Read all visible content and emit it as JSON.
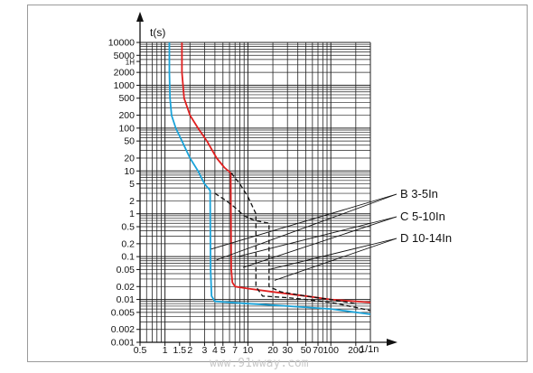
{
  "chart_data": {
    "type": "line",
    "title": "",
    "xlabel": "1/1n",
    "ylabel": "t(s)",
    "x_scale": "log",
    "y_scale": "log",
    "xlim": [
      0.5,
      300
    ],
    "ylim": [
      0.001,
      10000
    ],
    "grid": true,
    "x_ticks": [
      {
        "v": 0.5,
        "label": "0.5"
      },
      {
        "v": 1,
        "label": "1"
      },
      {
        "v": 1.5,
        "label": "1.5"
      },
      {
        "v": 2,
        "label": "2"
      },
      {
        "v": 3,
        "label": "3"
      },
      {
        "v": 4,
        "label": "4"
      },
      {
        "v": 5,
        "label": "5"
      },
      {
        "v": 7,
        "label": "7"
      },
      {
        "v": 10,
        "label": "10"
      },
      {
        "v": 20,
        "label": "20"
      },
      {
        "v": 30,
        "label": "30"
      },
      {
        "v": 50,
        "label": "50"
      },
      {
        "v": 70,
        "label": "70"
      },
      {
        "v": 100,
        "label": "100"
      },
      {
        "v": 200,
        "label": "200"
      }
    ],
    "y_ticks": [
      {
        "v": 10000,
        "label": "10000"
      },
      {
        "v": 5000,
        "label": "5000"
      },
      {
        "v": 3600,
        "label": "1H"
      },
      {
        "v": 2000,
        "label": "2000"
      },
      {
        "v": 1000,
        "label": "1000"
      },
      {
        "v": 500,
        "label": "500"
      },
      {
        "v": 200,
        "label": "200"
      },
      {
        "v": 100,
        "label": "100"
      },
      {
        "v": 50,
        "label": "50"
      },
      {
        "v": 20,
        "label": "20"
      },
      {
        "v": 10,
        "label": "10"
      },
      {
        "v": 5,
        "label": "5"
      },
      {
        "v": 2,
        "label": "2"
      },
      {
        "v": 1,
        "label": "1"
      },
      {
        "v": 0.5,
        "label": "0.5"
      },
      {
        "v": 0.2,
        "label": "0.2"
      },
      {
        "v": 0.1,
        "label": "0.1"
      },
      {
        "v": 0.05,
        "label": "0.05"
      },
      {
        "v": 0.02,
        "label": "0.02"
      },
      {
        "v": 0.01,
        "label": "0.01"
      },
      {
        "v": 0.005,
        "label": "0.005"
      },
      {
        "v": 0.002,
        "label": "0.002"
      },
      {
        "v": 0.001,
        "label": "0.001"
      }
    ],
    "series": [
      {
        "color": "#1aa3d9",
        "style": "solid",
        "points": [
          [
            1.13,
            10000
          ],
          [
            1.13,
            2000
          ],
          [
            1.15,
            500
          ],
          [
            1.2,
            200
          ],
          [
            1.35,
            100
          ],
          [
            1.6,
            50
          ],
          [
            2.0,
            20
          ],
          [
            2.5,
            10
          ],
          [
            3.0,
            5
          ],
          [
            3.5,
            3.5
          ],
          [
            3.55,
            0.05
          ],
          [
            3.65,
            0.012
          ],
          [
            4,
            0.009
          ],
          [
            10,
            0.008
          ],
          [
            30,
            0.007
          ],
          [
            100,
            0.006
          ],
          [
            300,
            0.0045
          ]
        ]
      },
      {
        "color": "#e02020",
        "style": "solid",
        "points": [
          [
            1.6,
            10000
          ],
          [
            1.6,
            2000
          ],
          [
            1.7,
            500
          ],
          [
            2.0,
            200
          ],
          [
            2.5,
            100
          ],
          [
            3.2,
            50
          ],
          [
            4.2,
            20
          ],
          [
            5.2,
            12
          ],
          [
            6.2,
            9
          ],
          [
            6.3,
            0.05
          ],
          [
            6.5,
            0.025
          ],
          [
            7,
            0.02
          ],
          [
            10,
            0.018
          ],
          [
            20,
            0.015
          ],
          [
            50,
            0.012
          ],
          [
            100,
            0.01
          ],
          [
            300,
            0.0085
          ]
        ]
      },
      {
        "color": "#111111",
        "style": "dashed",
        "points": [
          [
            6.3,
            9
          ],
          [
            8,
            5
          ],
          [
            10,
            2.5
          ],
          [
            12.5,
            1.0
          ],
          [
            12.5,
            0.02
          ],
          [
            15,
            0.012
          ],
          [
            30,
            0.011
          ],
          [
            50,
            0.01
          ],
          [
            100,
            0.0085
          ],
          [
            200,
            0.0065
          ],
          [
            300,
            0.0055
          ]
        ]
      },
      {
        "color": "#111111",
        "style": "dashed",
        "points": [
          [
            4,
            3
          ],
          [
            5.5,
            2
          ],
          [
            7,
            1.4
          ],
          [
            9,
            0.9
          ],
          [
            12,
            0.7
          ],
          [
            18,
            0.6
          ],
          [
            18,
            0.02
          ],
          [
            25,
            0.015
          ],
          [
            50,
            0.012
          ],
          [
            100,
            0.01
          ],
          [
            200,
            0.008
          ]
        ]
      }
    ],
    "annotations": [
      {
        "text": "B 3-5In",
        "target": [
          3.6,
          0.15
        ]
      },
      {
        "text": "C 5-10In",
        "target": [
          7.5,
          0.1
        ]
      },
      {
        "text": "D 10-14In",
        "target": [
          18,
          0.05
        ]
      }
    ]
  },
  "watermark": "www.91wway.com"
}
